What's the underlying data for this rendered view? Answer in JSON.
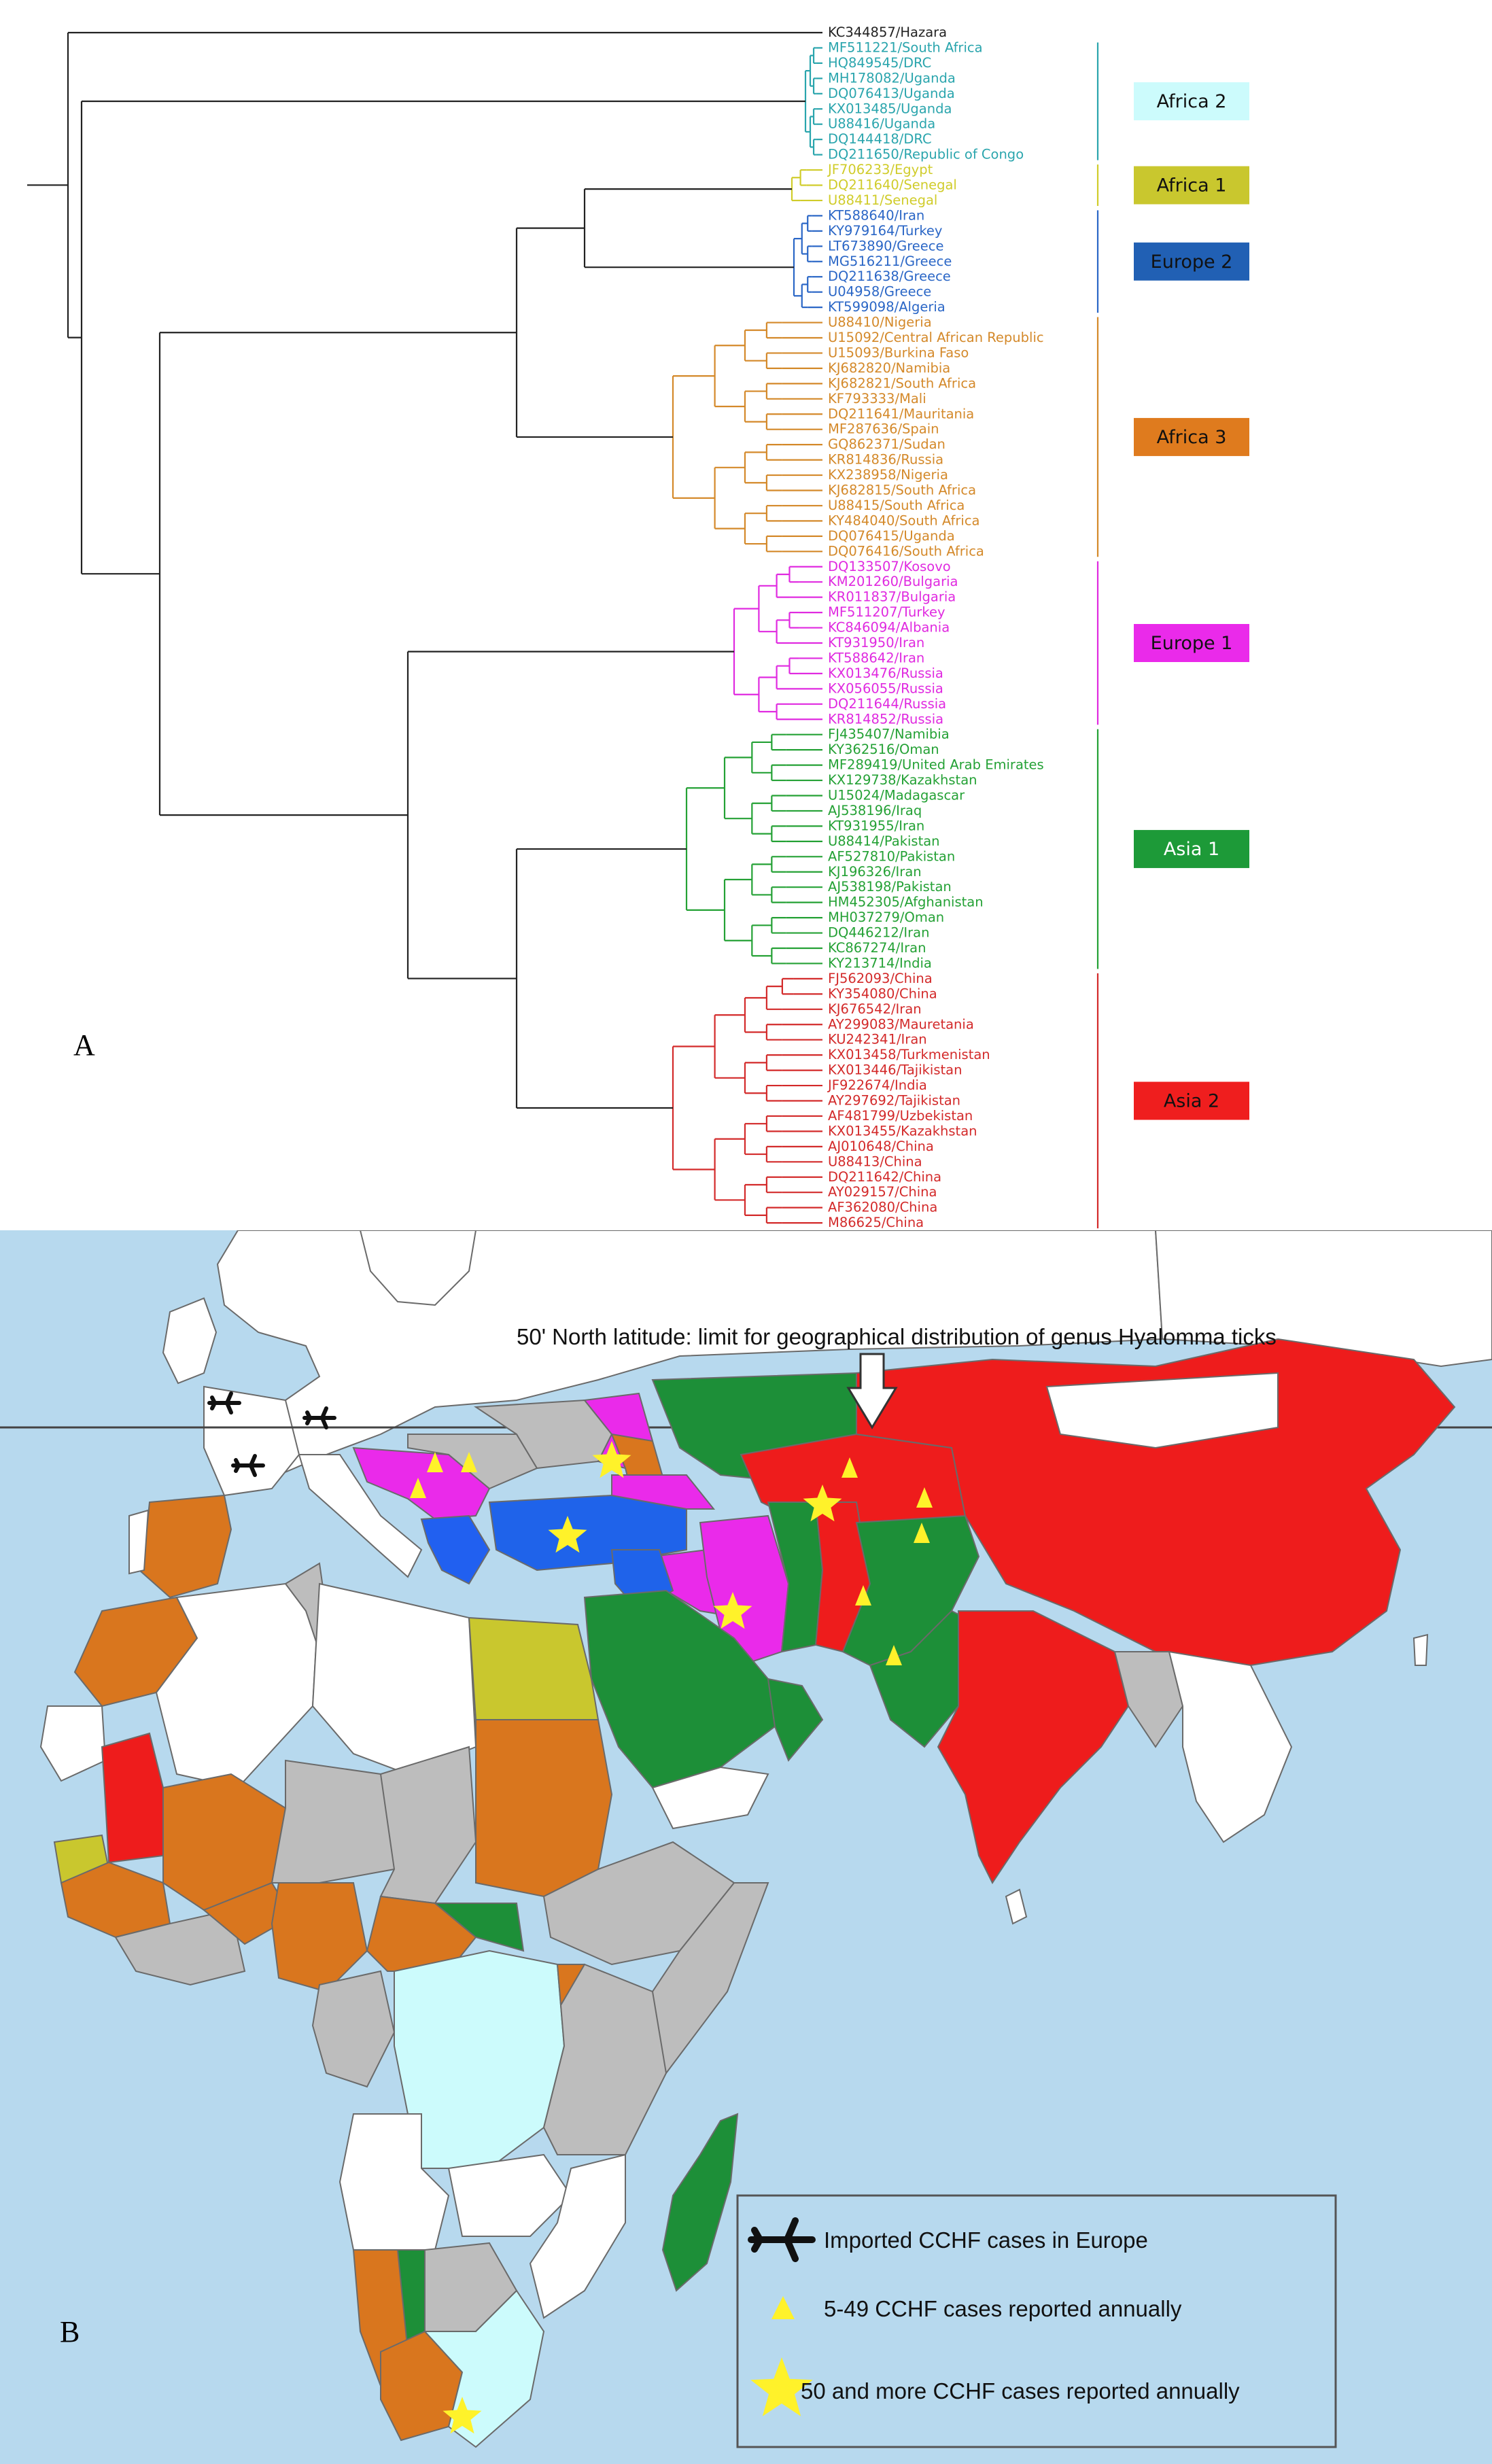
{
  "panel_a": {
    "letter": "A",
    "outgroup": {
      "label": "KC344857/Hazara",
      "color": "#222222"
    },
    "clades": [
      {
        "name": "Africa 2",
        "line_color": "#2aa5ad",
        "box_color": "#ccfbfc",
        "text_color": "#111111",
        "taxa": [
          "MF511221/South Africa",
          "HQ849545/DRC",
          "MH178082/Uganda",
          "DQ076413/Uganda",
          "KX013485/Uganda",
          "U88416/Uganda",
          "DQ144418/DRC",
          "DQ211650/Republic of Congo"
        ]
      },
      {
        "name": "Africa 1",
        "line_color": "#d0cc2a",
        "box_color": "#c9c72e",
        "text_color": "#111111",
        "taxa": [
          "JF706233/Egypt",
          "DQ211640/Senegal",
          "U88411/Senegal"
        ]
      },
      {
        "name": "Europe 2",
        "line_color": "#2a66c6",
        "box_color": "#2160b4",
        "text_color": "#111111",
        "taxa": [
          "KT588640/Iran",
          "KY979164/Turkey",
          "LT673890/Greece",
          "MG516211/Greece",
          "DQ211638/Greece",
          "U04958/Greece",
          "KT599098/Algeria"
        ]
      },
      {
        "name": "Africa 3",
        "line_color": "#d4892a",
        "box_color": "#df7b1e",
        "text_color": "#111111",
        "taxa": [
          "U88410/Nigeria",
          "U15092/Central African Republic",
          "U15093/Burkina Faso",
          "KJ682820/Namibia",
          "KJ682821/South Africa",
          "KF793333/Mali",
          "DQ211641/Mauritania",
          "MF287636/Spain",
          "GQ862371/Sudan",
          "KR814836/Russia",
          "KX238958/Nigeria",
          "KJ682815/South Africa",
          "U88415/South Africa",
          "KY484040/South Africa",
          "DQ076415/Uganda",
          "DQ076416/South Africa"
        ]
      },
      {
        "name": "Europe 1",
        "line_color": "#e02ae0",
        "box_color": "#ea2aea",
        "text_color": "#111111",
        "taxa": [
          "DQ133507/Kosovo",
          "KM201260/Bulgaria",
          "KR011837/Bulgaria",
          "MF511207/Turkey",
          "KC846094/Albania",
          "KT931950/Iran",
          "KT588642/Iran",
          "KX013476/Russia",
          "KX056055/Russia",
          "DQ211644/Russia",
          "KR814852/Russia"
        ]
      },
      {
        "name": "Asia 1",
        "line_color": "#24a135",
        "box_color": "#1d9a38",
        "text_color": "#ffffff",
        "taxa": [
          "FJ435407/Namibia",
          "KY362516/Oman",
          "MF289419/United Arab Emirates",
          "KX129738/Kazakhstan",
          "U15024/Madagascar",
          "AJ538196/Iraq",
          "KT931955/Iran",
          "U88414/Pakistan",
          "AF527810/Pakistan",
          "KJ196326/Iran",
          "AJ538198/Pakistan",
          "HM452305/Afghanistan",
          "MH037279/Oman",
          "DQ446212/Iran",
          "KC867274/Iran",
          "KY213714/India"
        ]
      },
      {
        "name": "Asia 2",
        "line_color": "#d32a2a",
        "box_color": "#ef1e1e",
        "text_color": "#111111",
        "taxa": [
          "FJ562093/China",
          "KY354080/China",
          "KJ676542/Iran",
          "AY299083/Mauretania",
          "KU242341/Iran",
          "KX013458/Turkmenistan",
          "KX013446/Tajikistan",
          "JF922674/India",
          "AY297692/Tajikistan",
          "AF481799/Uzbekistan",
          "KX013455/Kazakhstan",
          "AJ010648/China",
          "U88413/China",
          "DQ211642/China",
          "AY029157/China",
          "AF362080/China",
          "M86625/China"
        ]
      }
    ]
  },
  "panel_b": {
    "letter": "B",
    "latitude_note": "50' North latitude: limit for geographical distribution of genus Hyalomma ticks",
    "colors": {
      "sea": "#b7d9ee",
      "unaffected": "#ffffff",
      "reported": "#bdbdbd",
      "border": "#6a6a6a"
    },
    "legend": {
      "plane_label": "Imported CCHF cases in Europe",
      "triangle_label": "5-49 CCHF cases reported annually",
      "star_label": "50 and more CCHF cases reported annually",
      "plane_icon": "airplane-icon",
      "triangle_icon": "triangle-icon",
      "star_icon": "star-icon",
      "marker_color": "#fff22a"
    }
  }
}
